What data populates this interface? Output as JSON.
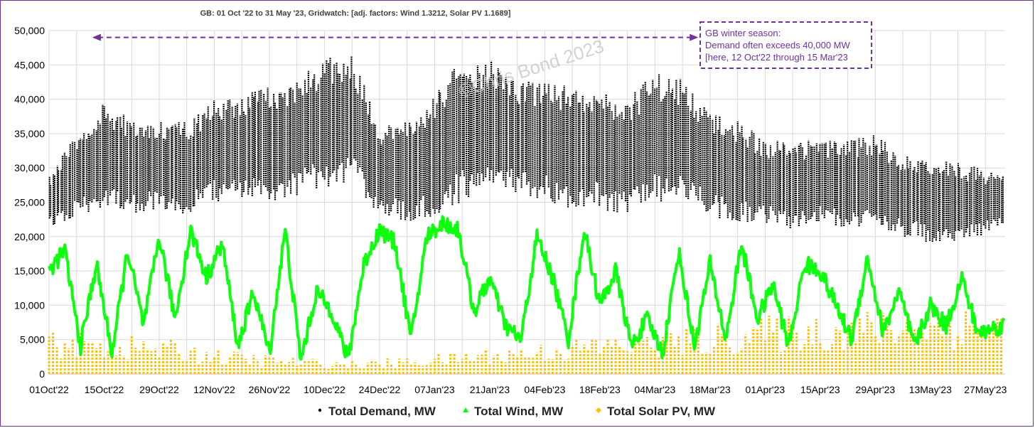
{
  "chart_data": {
    "type": "scatter",
    "title": "GB: 01 Oct '22 to 31 May '23, Gridwatch: [adj. factors: Wind 1.3212, Solar PV 1.1689]",
    "xlim": [
      "2022-10-01",
      "2023-06-01"
    ],
    "x_ticks": [
      "01Oct'22",
      "15Oct'22",
      "29Oct'22",
      "12Nov'22",
      "26Nov'22",
      "10Dec'22",
      "24Dec'22",
      "07Jan'23",
      "21Jan'23",
      "04Feb'23",
      "18Feb'23",
      "04Mar'23",
      "18Mar'23",
      "01Apr'23",
      "15Apr'23",
      "29Apr'23",
      "13May'23",
      "27May'23"
    ],
    "ylim": [
      0,
      50000
    ],
    "y_ticks": [
      "0",
      "5,000",
      "10,000",
      "15,000",
      "20,000",
      "25,000",
      "30,000",
      "35,000",
      "40,000",
      "45,000",
      "50,000"
    ],
    "grid": true,
    "legend_position": "bottom",
    "series": [
      {
        "name": "Total Demand, MW",
        "color": "#000000",
        "marker": "dot",
        "x": [
          "2022-10-01",
          "2022-10-08",
          "2022-10-15",
          "2022-10-22",
          "2022-10-29",
          "2022-11-05",
          "2022-11-12",
          "2022-11-19",
          "2022-11-26",
          "2022-12-03",
          "2022-12-10",
          "2022-12-17",
          "2022-12-24",
          "2022-12-31",
          "2023-01-07",
          "2023-01-14",
          "2023-01-21",
          "2023-01-28",
          "2023-02-04",
          "2023-02-11",
          "2023-02-18",
          "2023-02-25",
          "2023-03-04",
          "2023-03-11",
          "2023-03-18",
          "2023-03-25",
          "2023-04-01",
          "2023-04-08",
          "2023-04-15",
          "2023-04-22",
          "2023-04-29",
          "2023-05-06",
          "2023-05-13",
          "2023-05-20",
          "2023-05-31"
        ],
        "y_min": [
          21000,
          23000,
          24000,
          23000,
          24000,
          23000,
          25000,
          25000,
          25000,
          26000,
          27000,
          28000,
          23000,
          22000,
          23000,
          25000,
          26000,
          26000,
          25000,
          24000,
          24000,
          23000,
          25000,
          25000,
          23000,
          22000,
          22000,
          21000,
          22000,
          21000,
          21000,
          20000,
          19000,
          19000,
          21000
        ],
        "y_max": [
          29000,
          35000,
          40000,
          37000,
          37000,
          37000,
          40000,
          41000,
          42000,
          43000,
          46000,
          47000,
          36000,
          37000,
          41000,
          46000,
          46000,
          43000,
          43000,
          42000,
          42000,
          40000,
          44000,
          43000,
          38000,
          37000,
          34000,
          34000,
          34000,
          34000,
          35000,
          32000,
          32000,
          31000,
          29000
        ]
      },
      {
        "name": "Total Wind, MW",
        "color": "#00ff00",
        "marker": "triangle",
        "x": [
          "2022-10-01",
          "2022-10-05",
          "2022-10-09",
          "2022-10-13",
          "2022-10-17",
          "2022-10-21",
          "2022-10-25",
          "2022-10-29",
          "2022-11-02",
          "2022-11-06",
          "2022-11-10",
          "2022-11-14",
          "2022-11-18",
          "2022-11-22",
          "2022-11-26",
          "2022-11-30",
          "2022-12-04",
          "2022-12-08",
          "2022-12-12",
          "2022-12-16",
          "2022-12-20",
          "2022-12-24",
          "2022-12-28",
          "2023-01-01",
          "2023-01-05",
          "2023-01-09",
          "2023-01-13",
          "2023-01-17",
          "2023-01-21",
          "2023-01-25",
          "2023-01-29",
          "2023-02-02",
          "2023-02-06",
          "2023-02-10",
          "2023-02-14",
          "2023-02-18",
          "2023-02-22",
          "2023-02-26",
          "2023-03-02",
          "2023-03-06",
          "2023-03-10",
          "2023-03-14",
          "2023-03-18",
          "2023-03-22",
          "2023-03-26",
          "2023-03-30",
          "2023-04-03",
          "2023-04-07",
          "2023-04-11",
          "2023-04-15",
          "2023-04-19",
          "2023-04-23",
          "2023-04-27",
          "2023-05-01",
          "2023-05-05",
          "2023-05-09",
          "2023-05-13",
          "2023-05-17",
          "2023-05-21",
          "2023-05-25",
          "2023-05-31"
        ],
        "y": [
          15000,
          18000,
          4000,
          16000,
          3000,
          18000,
          7000,
          20000,
          8000,
          21000,
          14000,
          19000,
          4000,
          12000,
          3000,
          21000,
          2000,
          12000,
          9000,
          2000,
          16000,
          21000,
          19000,
          5000,
          20000,
          22000,
          21000,
          9000,
          14000,
          7000,
          5000,
          20000,
          14000,
          5000,
          21000,
          10000,
          15000,
          4000,
          8000,
          3000,
          18000,
          4000,
          16000,
          5000,
          19000,
          8000,
          13000,
          4000,
          16000,
          15000,
          10000,
          5000,
          17000,
          6000,
          12000,
          4000,
          10000,
          7000,
          14000,
          6000,
          7000
        ]
      },
      {
        "name": "Total Solar PV, MW",
        "color": "#ffc000",
        "marker": "diamond",
        "x": [
          "2022-10-01",
          "2022-10-15",
          "2022-11-01",
          "2022-11-15",
          "2022-12-01",
          "2022-12-15",
          "2023-01-01",
          "2023-01-15",
          "2023-02-01",
          "2023-02-15",
          "2023-03-01",
          "2023-03-15",
          "2023-04-01",
          "2023-04-15",
          "2023-05-01",
          "2023-05-15",
          "2023-05-31"
        ],
        "y_peak": [
          6500,
          6000,
          5000,
          3500,
          2500,
          2000,
          2500,
          3500,
          4500,
          5500,
          6500,
          7000,
          8500,
          9000,
          9500,
          10000,
          10500
        ]
      }
    ],
    "annotation": {
      "lines": [
        "GB winter season:",
        "Demand often exceeds 40,000 MW",
        "[here, 12 Oct'22 through 15 Mar'23"
      ],
      "arrow_from": "2022-10-12",
      "arrow_to": "2023-03-15",
      "arrow_y": 49000,
      "color": "#7030a0"
    },
    "watermark": "©Chris Bond 2023"
  }
}
